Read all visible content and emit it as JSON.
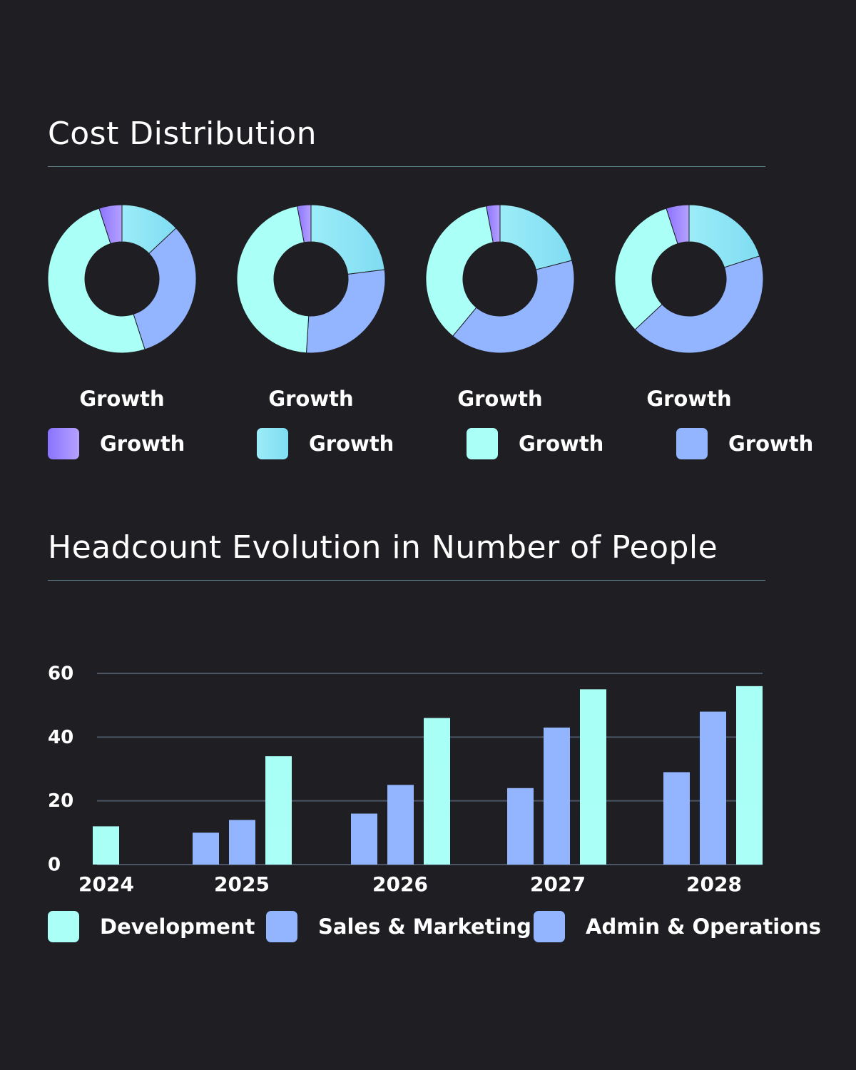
{
  "cost_section": {
    "title": "Cost Distribution"
  },
  "headcount_section": {
    "title": "Headcount Evolution in Number of People"
  },
  "colors": {
    "background": "#1f1f23",
    "rule": "#5d7f8c",
    "purple": "#a98ffd",
    "sky": "#8de8f7",
    "mint": "#aafff6",
    "periwinkle": "#93b5ff",
    "gridline": "#4b5563"
  },
  "chart_data": [
    {
      "type": "pie",
      "donuts": [
        {
          "caption": "Growth",
          "values": [
            5,
            13,
            32,
            50
          ]
        },
        {
          "caption": "Growth",
          "values": [
            3,
            23,
            28,
            46
          ]
        },
        {
          "caption": "Growth",
          "values": [
            3,
            21,
            40,
            36
          ]
        },
        {
          "caption": "Growth",
          "values": [
            5,
            20,
            43,
            32
          ]
        }
      ],
      "legend": [
        {
          "label": "Growth",
          "color": "#8a73ff"
        },
        {
          "label": "Growth",
          "color": "#8de8f7"
        },
        {
          "label": "Growth",
          "color": "#aafff6"
        },
        {
          "label": "Growth",
          "color": "#93b5ff"
        }
      ],
      "slice_colors": [
        "#a98ffd",
        "#8de8f7",
        "#93b5ff",
        "#aafff6"
      ]
    },
    {
      "type": "bar",
      "categories": [
        "2024",
        "2025",
        "2026",
        "2027",
        "2028"
      ],
      "series": [
        {
          "name": "Admin & Operations",
          "color": "#93b5ff",
          "values": [
            0,
            10,
            16,
            24,
            29
          ]
        },
        {
          "name": "Sales & Marketing",
          "color": "#93b5ff",
          "values": [
            0,
            14,
            25,
            43,
            48
          ]
        },
        {
          "name": "Development",
          "color": "#aafff6",
          "values": [
            12,
            34,
            46,
            55,
            56
          ]
        }
      ],
      "legend": [
        {
          "label": "Development",
          "color": "#aafff6"
        },
        {
          "label": "Sales & Marketing",
          "color": "#93b5ff"
        },
        {
          "label": "Admin & Operations",
          "color": "#93b5ff"
        }
      ],
      "yticks": [
        "0",
        "20",
        "40",
        "60"
      ],
      "ylim": [
        0,
        60
      ],
      "grid": true
    }
  ]
}
